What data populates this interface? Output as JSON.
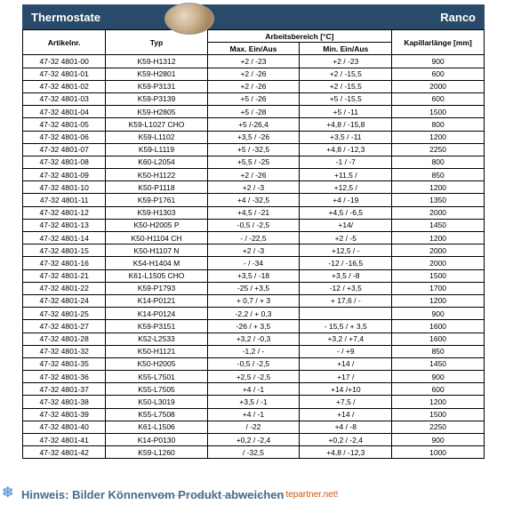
{
  "header": {
    "left": "Thermostate",
    "right": "Ranco"
  },
  "columns": {
    "artikelnr": "Artikelnr.",
    "typ": "Typ",
    "arbeitsbereich": "Arbeitsbereich [°C]",
    "max": "Max. Ein/Aus",
    "min": "Min. Ein/Aus",
    "kapillar": "Kapillarlänge [mm]"
  },
  "rows": [
    {
      "a": "47-32 4801-00",
      "t": "K59-H1312",
      "mx": "+2 / -23",
      "mn": "+2 / -23",
      "k": "900"
    },
    {
      "a": "47-32 4801-01",
      "t": "K59-H2801",
      "mx": "+2 / -26",
      "mn": "+2 / -15,5",
      "k": "600"
    },
    {
      "a": "47-32 4801-02",
      "t": "K59-P3131",
      "mx": "+2 / -26",
      "mn": "+2 / -15,5",
      "k": "2000"
    },
    {
      "a": "47-32 4801-03",
      "t": "K59-P3139",
      "mx": "+5 / -26",
      "mn": "+5 / -15,5",
      "k": "600"
    },
    {
      "a": "47-32 4801-04",
      "t": "K59-H2805",
      "mx": "+5 / -28",
      "mn": "+5 / -11",
      "k": "1500"
    },
    {
      "a": "47-32 4801-05",
      "t": "K59-L1027 CHO",
      "mx": "+5 /-26,4",
      "mn": "+4,8 / -15,8",
      "k": "800"
    },
    {
      "a": "47-32 4801-06",
      "t": "K59-L1102",
      "mx": "+3,5 / -26",
      "mn": "+3,5 / -11",
      "k": "1200"
    },
    {
      "a": "47-32 4801-07",
      "t": "K59-L1119",
      "mx": "+5 / -32,5",
      "mn": "+4,8 / -12,3",
      "k": "2250"
    },
    {
      "a": "47-32 4801-08",
      "t": "K60-L2054",
      "mx": "+5,5 / -25",
      "mn": "-1 / -7",
      "k": "800"
    },
    {
      "a": "47-32 4801-09",
      "t": "K50-H1122",
      "mx": "+2 / -26",
      "mn": "+11,5 /",
      "k": "850"
    },
    {
      "a": "47-32 4801-10",
      "t": "K50-P1118",
      "mx": "+2 / -3",
      "mn": "+12,5 /",
      "k": "1200"
    },
    {
      "a": "47-32 4801-11",
      "t": "K59-P1761",
      "mx": "+4 / -32,5",
      "mn": "+4 / -19",
      "k": "1350"
    },
    {
      "a": "47-32 4801-12",
      "t": "K59-H1303",
      "mx": "+4,5 / -21",
      "mn": "+4,5 / -6,5",
      "k": "2000"
    },
    {
      "a": "47-32 4801-13",
      "t": "K50-H2005 P",
      "mx": "-0,5 / -2,5",
      "mn": "+14/",
      "k": "1450"
    },
    {
      "a": "47-32 4801-14",
      "t": "K50-H1104 CH",
      "mx": "- / -22,5",
      "mn": "+2 / -5",
      "k": "1200"
    },
    {
      "a": "47-32 4801-15",
      "t": "K50-H1107 N",
      "mx": "+2 / -3",
      "mn": "+12,5 / -",
      "k": "2000"
    },
    {
      "a": "47-32 4801-16",
      "t": "K54-H1404 M",
      "mx": "- / -34",
      "mn": "-12 / -16,5",
      "k": "2000"
    },
    {
      "a": "47-32 4801-21",
      "t": "K61-L1505  CHO",
      "mx": "+3,5 / -18",
      "mn": "+3,5 / -8",
      "k": "1500"
    },
    {
      "a": "47-32 4801-22",
      "t": "K59-P1793",
      "mx": "-25 / +3,5",
      "mn": "-12 / +3,5",
      "k": "1700"
    },
    {
      "a": "47-32 4801-24",
      "t": "K14-P0121",
      "mx": "+ 0,7 / + 3",
      "mn": "+ 17,6 / -",
      "k": "1200"
    },
    {
      "a": "47-32 4801-25",
      "t": "K14-P0124",
      "mx": "-2,2 / + 0,3",
      "mn": "",
      "k": "900"
    },
    {
      "a": "47-32 4801-27",
      "t": "K59-P3151",
      "mx": "-26 / + 3,5",
      "mn": "- 15,5 / + 3,5",
      "k": "1600"
    },
    {
      "a": "47-32 4801-28",
      "t": "K52-L2533",
      "mx": "+3,2 / -0,3",
      "mn": "+3,2 / +7,4",
      "k": "1600"
    },
    {
      "a": "47-32 4801-32",
      "t": "K50-H1121",
      "mx": "-1,2 / -",
      "mn": "- / +9",
      "k": "850"
    },
    {
      "a": "47-32 4801-35",
      "t": "K50-H2005",
      "mx": "-0,5 / -2,5",
      "mn": "+14 /",
      "k": "1450"
    },
    {
      "a": "47-32 4801-36",
      "t": "K55-L7501",
      "mx": "+2,5 / -2,5",
      "mn": "+17 /",
      "k": "900"
    },
    {
      "a": "47-32 4801-37",
      "t": "K55-L7505",
      "mx": "+4 / -1",
      "mn": "+14 /+10",
      "k": "600"
    },
    {
      "a": "47-32 4801-38",
      "t": "K50-L3019",
      "mx": "+3,5 / -1",
      "mn": "+7,5 /",
      "k": "1200"
    },
    {
      "a": "47-32 4801-39",
      "t": "K55-L7508",
      "mx": "+4 / -1",
      "mn": "+14 /",
      "k": "1500"
    },
    {
      "a": "47-32 4801-40",
      "t": "K61-L1506",
      "mx": "/ -22",
      "mn": "+4 / -8",
      "k": "2250"
    },
    {
      "a": "47-32 4801-41",
      "t": "K14-P0130",
      "mx": "+0,2 / -2,4",
      "mn": "+0,2 / -2,4",
      "k": "900"
    },
    {
      "a": "47-32 4801-42",
      "t": "K59-L1260",
      "mx": "/ -32,5",
      "mn": "+4,8 / -12,3",
      "k": "1000"
    }
  ],
  "footer": {
    "text1": "Hinweis: Bilder Können ",
    "text2": "vom Produkt abweichen",
    "partner": "tepartner.net!"
  },
  "colors": {
    "header_bg": "#2a4a6a",
    "header_fg": "#ffffff",
    "border": "#000000",
    "footer_fg": "#4a6a8a",
    "partner_fg": "#cc5500"
  }
}
